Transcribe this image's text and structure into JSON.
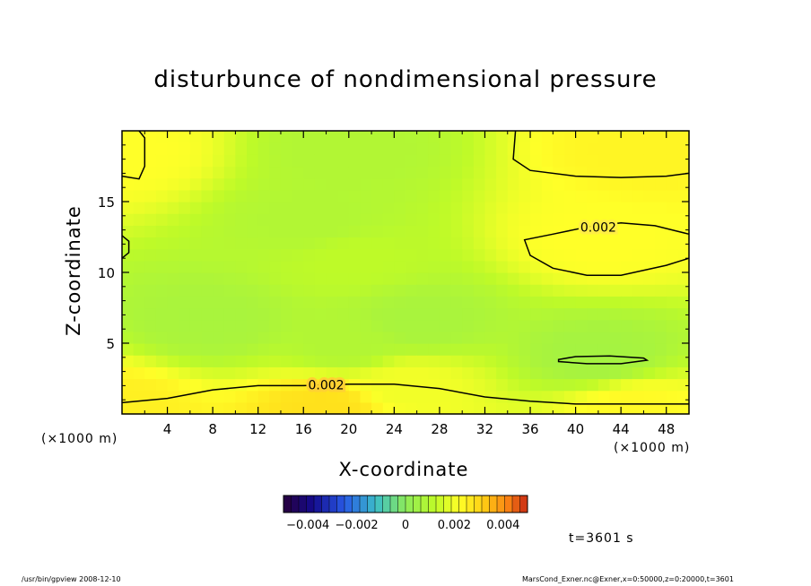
{
  "chart_data": {
    "type": "heatmap",
    "title": "disturbunce of nondimensional pressure",
    "xlabel": "X-coordinate",
    "ylabel": "Z-coordinate",
    "x_unit": "(×1000 m)",
    "xlim": [
      0,
      50
    ],
    "ylim": [
      0,
      20
    ],
    "x_ticks": [
      4,
      8,
      12,
      16,
      20,
      24,
      28,
      32,
      36,
      40,
      44,
      48
    ],
    "y_ticks": [
      5,
      10,
      15
    ],
    "contour_labels": [
      "0.002",
      "0.002"
    ],
    "colorbar": {
      "range": [
        -0.005,
        0.005
      ],
      "tick_labels": [
        "−0.004",
        "−0.002",
        "0",
        "0.002",
        "0.004"
      ],
      "tick_values": [
        -0.004,
        -0.002,
        0,
        0.002,
        0.004
      ]
    },
    "field_estimate": [
      {
        "x": 0,
        "z": 0.5,
        "value": 0.0025
      },
      {
        "x": 18,
        "z": 0.5,
        "value": 0.0028
      },
      {
        "x": 45,
        "z": 0.5,
        "value": 0.0023
      },
      {
        "x": 25,
        "z": 2,
        "value": 0.002
      },
      {
        "x": 20,
        "z": 5,
        "value": 0.0009
      },
      {
        "x": 8,
        "z": 6.5,
        "value": 0.0007
      },
      {
        "x": 26,
        "z": 6.5,
        "value": 0.0007
      },
      {
        "x": 42,
        "z": 4,
        "value": 0.0006
      },
      {
        "x": 20,
        "z": 11,
        "value": 0.0012
      },
      {
        "x": 17,
        "z": 13.5,
        "value": 0.0009
      },
      {
        "x": 42,
        "z": 12.5,
        "value": 0.0022
      },
      {
        "x": 46,
        "z": 18.5,
        "value": 0.0024
      },
      {
        "x": 0,
        "z": 18.5,
        "value": 0.0022
      },
      {
        "x": 20,
        "z": 18.5,
        "value": 0.0009
      }
    ]
  },
  "time_label": "t=3601 s",
  "footer": {
    "left": "/usr/bin/gpview   2008-12-10",
    "right": "MarsCond_Exner.nc@Exner,x=0:50000,z=0:20000,t=3601"
  }
}
